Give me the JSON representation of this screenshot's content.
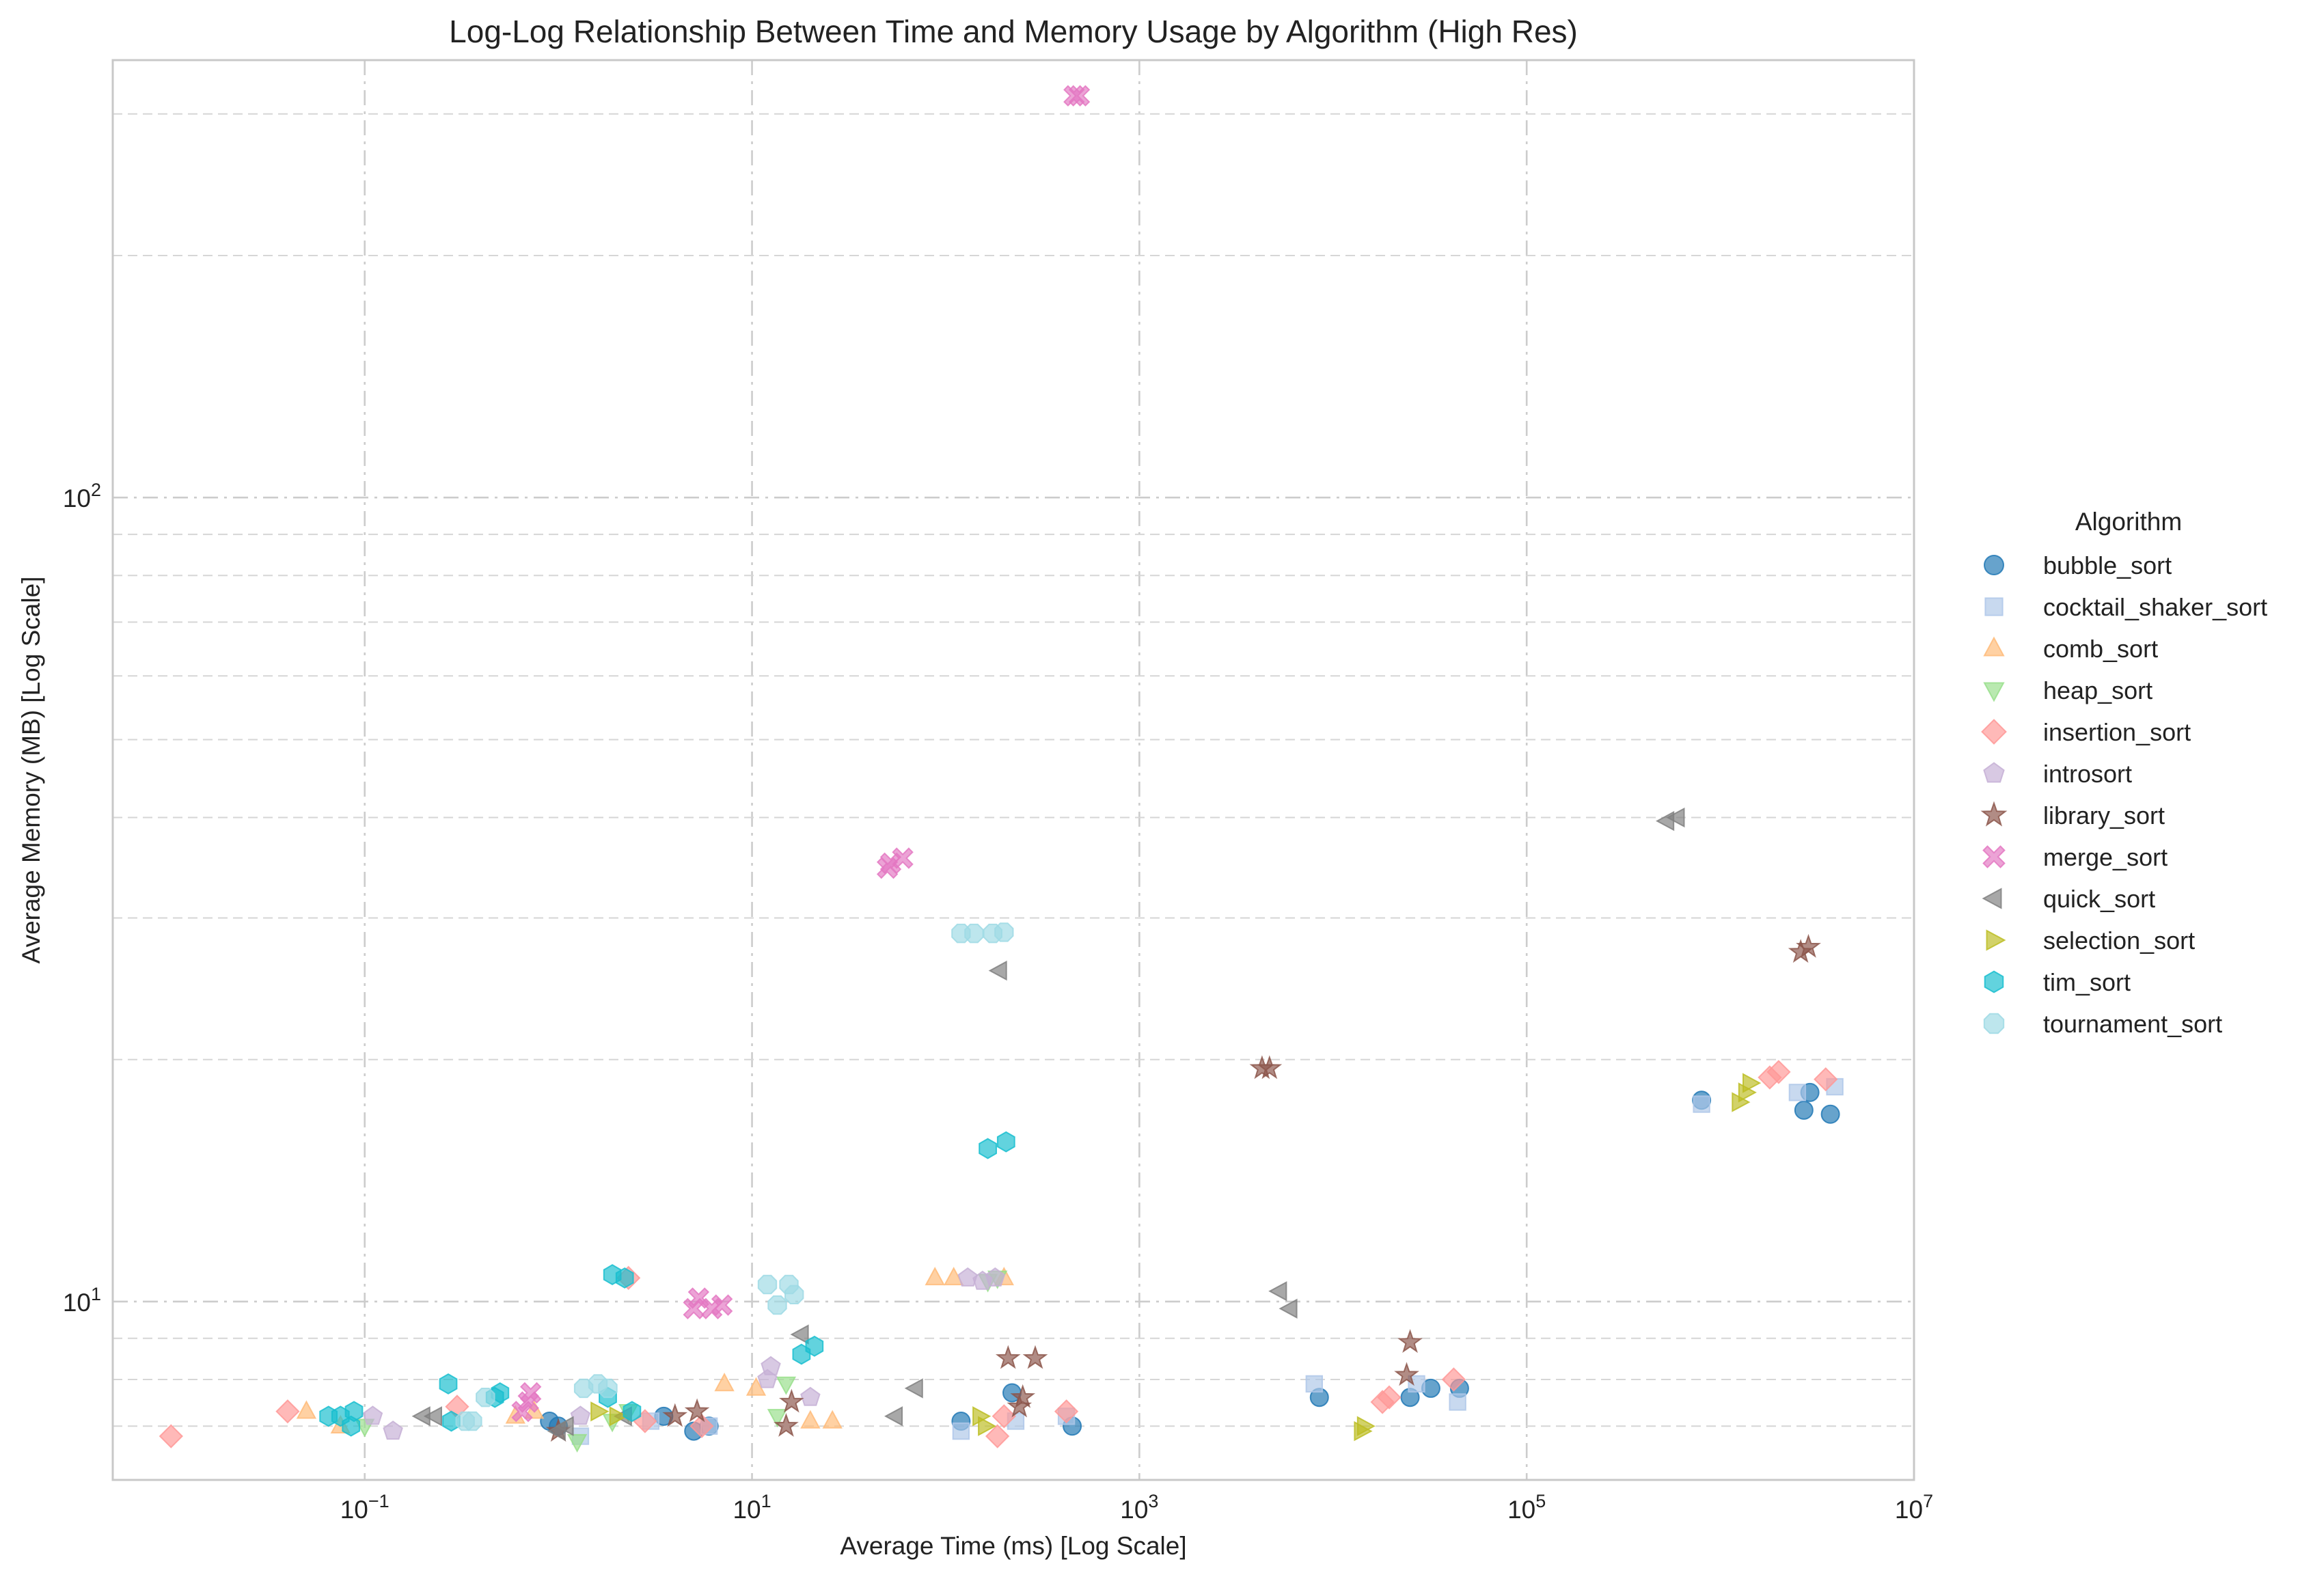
{
  "chart_data": {
    "type": "scatter",
    "title": "Log-Log Relationship Between Time and Memory Usage by Algorithm (High Res)",
    "xlabel": "Average Time (ms) [Log Scale]",
    "ylabel": "Average Memory (MB) [Log Scale]",
    "xscale": "log",
    "yscale": "log",
    "xlim": [
      0.005,
      10000000
    ],
    "ylim": [
      6,
      350
    ],
    "x_ticks": [
      {
        "value": 0.1,
        "base": "10",
        "exp": "−1"
      },
      {
        "value": 10,
        "base": "10",
        "exp": "1"
      },
      {
        "value": 1000,
        "base": "10",
        "exp": "3"
      },
      {
        "value": 100000,
        "base": "10",
        "exp": "5"
      },
      {
        "value": 10000000,
        "base": "10",
        "exp": "7"
      }
    ],
    "y_ticks": [
      {
        "value": 10,
        "base": "10",
        "exp": "1"
      },
      {
        "value": 100,
        "base": "10",
        "exp": "2"
      }
    ],
    "grid": true,
    "legend_title": "Algorithm",
    "legend_position": "right, outside plot",
    "series": [
      {
        "name": "bubble_sort",
        "color": "#1f77b4",
        "marker": "circle",
        "points": [
          [
            0.9,
            7.1
          ],
          [
            1.0,
            7.0
          ],
          [
            3.5,
            7.2
          ],
          [
            5,
            6.9
          ],
          [
            6,
            7.0
          ],
          [
            120,
            7.1
          ],
          [
            220,
            7.7
          ],
          [
            450,
            7.0
          ],
          [
            8500,
            7.6
          ],
          [
            25000,
            7.6
          ],
          [
            32000,
            7.8
          ],
          [
            45000,
            7.8
          ],
          [
            800000,
            17.8
          ],
          [
            2700000,
            17.3
          ],
          [
            2900000,
            18.2
          ],
          [
            3700000,
            17.1
          ]
        ]
      },
      {
        "name": "cocktail_shaker_sort",
        "color": "#aec7e8",
        "marker": "square",
        "points": [
          [
            1.3,
            6.8
          ],
          [
            3,
            7.1
          ],
          [
            6,
            7.0
          ],
          [
            120,
            6.9
          ],
          [
            230,
            7.1
          ],
          [
            420,
            7.2
          ],
          [
            8000,
            7.9
          ],
          [
            27000,
            7.9
          ],
          [
            44000,
            7.5
          ],
          [
            800000,
            17.6
          ],
          [
            2500000,
            18.2
          ],
          [
            3900000,
            18.5
          ]
        ]
      },
      {
        "name": "comb_sort",
        "color": "#ffbb78",
        "marker": "triangle-up",
        "points": [
          [
            0.05,
            7.3
          ],
          [
            0.075,
            7.0
          ],
          [
            0.6,
            7.2
          ],
          [
            0.75,
            7.3
          ],
          [
            7.2,
            7.9
          ],
          [
            10.5,
            7.8
          ],
          [
            20,
            7.1
          ],
          [
            26,
            7.1
          ],
          [
            88,
            10.7
          ],
          [
            110,
            10.7
          ],
          [
            200,
            10.7
          ]
        ]
      },
      {
        "name": "heap_sort",
        "color": "#98df8a",
        "marker": "triangle-down",
        "points": [
          [
            0.1,
            7.0
          ],
          [
            1.25,
            6.7
          ],
          [
            1.9,
            7.1
          ],
          [
            2.3,
            7.3
          ],
          [
            13.5,
            7.2
          ],
          [
            15,
            7.9
          ],
          [
            165,
            10.6
          ],
          [
            185,
            10.7
          ]
        ]
      },
      {
        "name": "insertion_sort",
        "color": "#ff9896",
        "marker": "diamond",
        "points": [
          [
            0.01,
            6.8
          ],
          [
            0.04,
            7.3
          ],
          [
            0.3,
            7.4
          ],
          [
            2.3,
            10.7
          ],
          [
            2.8,
            7.1
          ],
          [
            5.5,
            7.0
          ],
          [
            185,
            6.8
          ],
          [
            200,
            7.2
          ],
          [
            420,
            7.3
          ],
          [
            18000,
            7.5
          ],
          [
            19500,
            7.6
          ],
          [
            42000,
            8.0
          ],
          [
            1800000,
            19.0
          ],
          [
            2000000,
            19.3
          ],
          [
            3500000,
            18.9
          ]
        ]
      },
      {
        "name": "introsort",
        "color": "#c5b0d5",
        "marker": "pentagon",
        "points": [
          [
            0.11,
            7.2
          ],
          [
            0.14,
            6.9
          ],
          [
            1.3,
            7.2
          ],
          [
            12,
            8.0
          ],
          [
            12.5,
            8.3
          ],
          [
            20,
            7.6
          ],
          [
            130,
            10.7
          ],
          [
            155,
            10.6
          ],
          [
            180,
            10.7
          ]
        ]
      },
      {
        "name": "library_sort",
        "color": "#8c564b",
        "marker": "star",
        "points": [
          [
            1.0,
            6.9
          ],
          [
            4.0,
            7.2
          ],
          [
            5.2,
            7.3
          ],
          [
            15,
            7.0
          ],
          [
            16,
            7.5
          ],
          [
            210,
            8.5
          ],
          [
            240,
            7.4
          ],
          [
            250,
            7.6
          ],
          [
            290,
            8.5
          ],
          [
            4300,
            19.5
          ],
          [
            4700,
            19.5
          ],
          [
            24000,
            8.1
          ],
          [
            25000,
            8.9
          ],
          [
            2600000,
            27.2
          ],
          [
            2850000,
            27.6
          ]
        ]
      },
      {
        "name": "merge_sort",
        "color": "#e377c2",
        "marker": "x",
        "points": [
          [
            0.65,
            7.3
          ],
          [
            0.7,
            7.5
          ],
          [
            0.72,
            7.7
          ],
          [
            5,
            9.8
          ],
          [
            5.3,
            10.1
          ],
          [
            6.2,
            9.8
          ],
          [
            7,
            9.9
          ],
          [
            50,
            34.6
          ],
          [
            52,
            35.1
          ],
          [
            60,
            35.6
          ],
          [
            460,
            316
          ],
          [
            490,
            316
          ]
        ]
      },
      {
        "name": "quick_sort",
        "color": "#7f7f7f",
        "marker": "triangle-left",
        "points": [
          [
            0.2,
            7.2
          ],
          [
            0.23,
            7.2
          ],
          [
            1.0,
            6.9
          ],
          [
            1.1,
            7.0
          ],
          [
            2.2,
            7.2
          ],
          [
            55,
            7.2
          ],
          [
            70,
            7.8
          ],
          [
            18,
            9.1
          ],
          [
            190,
            25.8
          ],
          [
            5300,
            10.3
          ],
          [
            6000,
            9.8
          ],
          [
            530000,
            39.6
          ],
          [
            600000,
            40
          ]
        ]
      },
      {
        "name": "selection_sort",
        "color": "#bcbd22",
        "marker": "triangle-right",
        "points": [
          [
            1.6,
            7.3
          ],
          [
            2.0,
            7.2
          ],
          [
            150,
            7.2
          ],
          [
            160,
            7.0
          ],
          [
            14000,
            6.9
          ],
          [
            14500,
            7.0
          ],
          [
            1250000,
            17.7
          ],
          [
            1350000,
            18.2
          ],
          [
            1420000,
            18.7
          ]
        ]
      },
      {
        "name": "tim_sort",
        "color": "#17becf",
        "marker": "hexagon",
        "points": [
          [
            0.065,
            7.2
          ],
          [
            0.075,
            7.2
          ],
          [
            0.085,
            7.0
          ],
          [
            0.088,
            7.3
          ],
          [
            0.27,
            7.9
          ],
          [
            0.28,
            7.1
          ],
          [
            0.47,
            7.6
          ],
          [
            0.5,
            7.7
          ],
          [
            1.8,
            7.6
          ],
          [
            1.9,
            10.8
          ],
          [
            2.2,
            10.7
          ],
          [
            2.4,
            7.3
          ],
          [
            18,
            8.6
          ],
          [
            21,
            8.8
          ],
          [
            165,
            15.5
          ],
          [
            205,
            15.8
          ]
        ]
      },
      {
        "name": "tournament_sort",
        "color": "#9edae5",
        "marker": "octagon",
        "points": [
          [
            0.33,
            7.1
          ],
          [
            0.36,
            7.1
          ],
          [
            0.42,
            7.6
          ],
          [
            1.35,
            7.8
          ],
          [
            1.6,
            7.9
          ],
          [
            1.8,
            7.8
          ],
          [
            12,
            10.5
          ],
          [
            13.5,
            9.9
          ],
          [
            15.5,
            10.5
          ],
          [
            16.5,
            10.2
          ],
          [
            120,
            28.7
          ],
          [
            140,
            28.7
          ],
          [
            175,
            28.7
          ],
          [
            200,
            28.8
          ]
        ]
      }
    ]
  }
}
